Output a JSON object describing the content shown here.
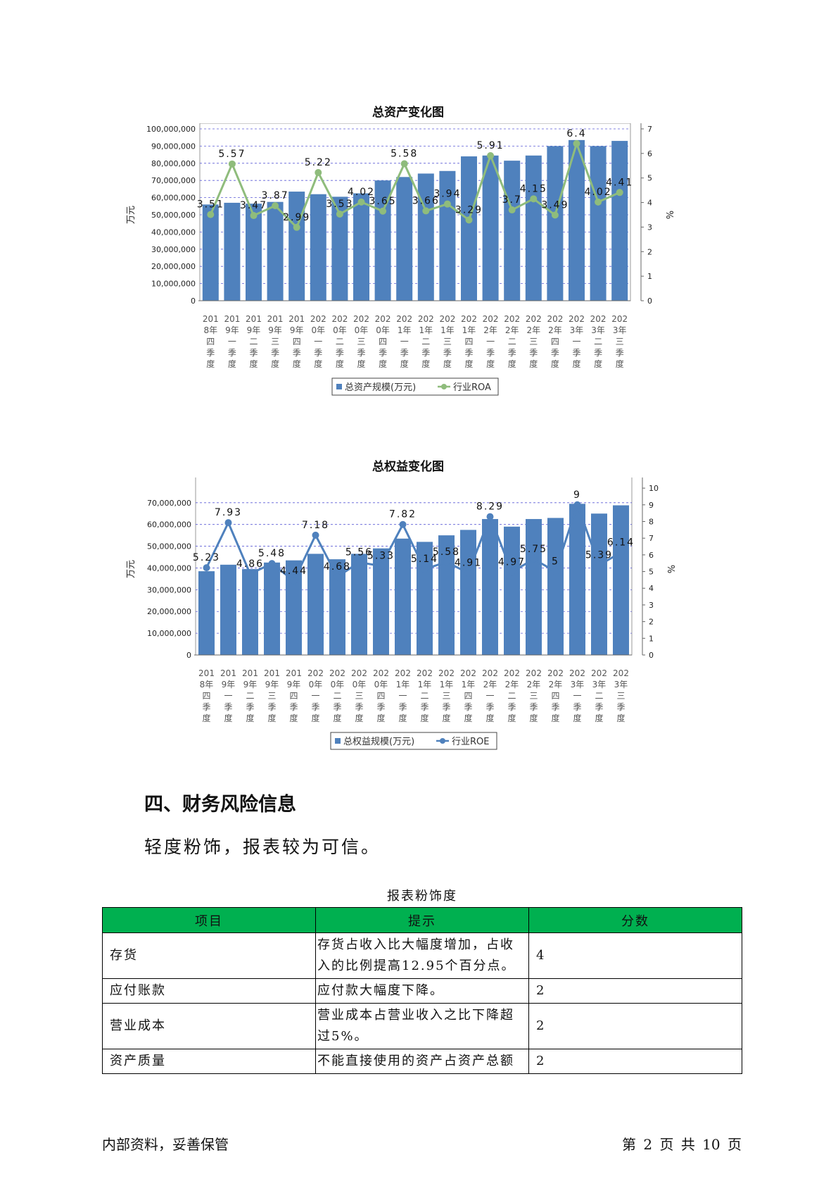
{
  "charts": [
    {
      "type": "bar+line",
      "title": "总资产变化图",
      "left_axis_label": "万元",
      "right_axis_label": "%",
      "left_ticks": [
        "0",
        "10,000,000",
        "20,000,000",
        "30,000,000",
        "40,000,000",
        "50,000,000",
        "60,000,000",
        "70,000,000",
        "80,000,000",
        "90,000,000",
        "100,000,000"
      ],
      "right_ticks": [
        "0",
        "1",
        "2",
        "3",
        "4",
        "5",
        "6",
        "7"
      ],
      "legend": {
        "bar": "总资产规模(万元)",
        "line": "行业ROA"
      },
      "colors": {
        "bar": "#4f81bd",
        "line": "#8fbc7c"
      },
      "categories": [
        "2018年四季度",
        "2019年一季度",
        "2019年二季度",
        "2019年三季度",
        "2019年四季度",
        "2020年一季度",
        "2020年二季度",
        "2020年三季度",
        "2020年四季度",
        "2021年一季度",
        "2021年二季度",
        "2021年三季度",
        "2021年四季度",
        "2022年一季度",
        "2022年二季度",
        "2022年三季度",
        "2022年四季度",
        "2023年一季度",
        "2023年二季度",
        "2023年三季度"
      ],
      "bars": [
        56000000,
        57000000,
        56500000,
        57500000,
        63500000,
        62000000,
        60500000,
        62500000,
        70000000,
        72000000,
        74000000,
        75500000,
        84000000,
        84500000,
        81500000,
        84500000,
        90000000,
        93500000,
        90000000,
        93000000
      ],
      "line": [
        3.51,
        5.57,
        3.47,
        3.87,
        2.99,
        5.22,
        3.53,
        4.02,
        3.65,
        5.58,
        3.66,
        3.94,
        3.29,
        5.91,
        3.7,
        4.15,
        3.49,
        6.4,
        4.02,
        4.41
      ],
      "line_labels": [
        "3.51",
        "5.57",
        "3.47",
        "3.87",
        "2.99",
        "5.22",
        "3.53",
        "4.02",
        "3.65",
        "5.58",
        "3.66",
        "3.94",
        "3.29",
        "5.91",
        "3.7",
        "4.15",
        "3.49",
        "6.4",
        "4.02",
        "4.41"
      ],
      "ylim_left": [
        0,
        100000000
      ],
      "ylim_right": [
        0,
        7
      ]
    },
    {
      "type": "bar+line",
      "title": "总权益变化图",
      "left_axis_label": "万元",
      "right_axis_label": "%",
      "left_ticks": [
        "0",
        "10,000,000",
        "20,000,000",
        "30,000,000",
        "40,000,000",
        "50,000,000",
        "60,000,000",
        "70,000,000"
      ],
      "right_ticks": [
        "0",
        "1",
        "2",
        "3",
        "4",
        "5",
        "6",
        "7",
        "8",
        "9",
        "10"
      ],
      "legend": {
        "bar": "总权益规模(万元)",
        "line": "行业ROE"
      },
      "colors": {
        "bar": "#4f81bd",
        "line": "#4f81bd"
      },
      "categories": [
        "2018年四季度",
        "2019年一季度",
        "2019年二季度",
        "2019年三季度",
        "2019年四季度",
        "2020年一季度",
        "2020年二季度",
        "2020年三季度",
        "2020年四季度",
        "2021年一季度",
        "2021年二季度",
        "2021年三季度",
        "2021年四季度",
        "2022年一季度",
        "2022年二季度",
        "2022年三季度",
        "2022年四季度",
        "2023年一季度",
        "2023年二季度",
        "2023年三季度"
      ],
      "bars": [
        38500000,
        41500000,
        39500000,
        42500000,
        43500000,
        46500000,
        44000000,
        46500000,
        49000000,
        53500000,
        52000000,
        55000000,
        57500000,
        62500000,
        59000000,
        62500000,
        63000000,
        69500000,
        65000000,
        68800000
      ],
      "line": [
        5.23,
        7.93,
        4.86,
        5.48,
        4.44,
        7.18,
        4.68,
        5.56,
        5.33,
        7.82,
        5.14,
        5.58,
        4.91,
        8.29,
        4.97,
        5.75,
        5,
        9,
        5.39,
        6.14
      ],
      "line_labels": [
        "5.23",
        "7.93",
        "4.86",
        "5.48",
        "4.44",
        "7.18",
        "4.68",
        "5.56",
        "5.33",
        "7.82",
        "5.14",
        "5.58",
        "4.91",
        "8.29",
        "4.97",
        "5.75",
        "5",
        "9",
        "5.39",
        "6.14"
      ],
      "ylim_left": [
        0,
        79000000
      ],
      "ylim_right": [
        0,
        10.3
      ]
    }
  ],
  "section": {
    "heading": "四、财务风险信息",
    "summary": "轻度粉饰，报表较为可信。"
  },
  "table": {
    "caption": "报表粉饰度",
    "headers": [
      "项目",
      "提示",
      "分数"
    ],
    "rows": [
      {
        "item": "存货",
        "hint": "存货占收入比大幅度增加，占收入的比例提高12.95个百分点。",
        "score": "4"
      },
      {
        "item": "应付账款",
        "hint": "应付款大幅度下降。",
        "score": "2"
      },
      {
        "item": "营业成本",
        "hint": "营业成本占营业收入之比下降超过5%。",
        "score": "2"
      },
      {
        "item": "资产质量",
        "hint": "不能直接使用的资产占资产总额",
        "score": "2"
      }
    ],
    "header_color": "#00b050"
  },
  "footer": {
    "left": "内部资料，妥善保管",
    "right": "第 2 页   共 10 页"
  }
}
